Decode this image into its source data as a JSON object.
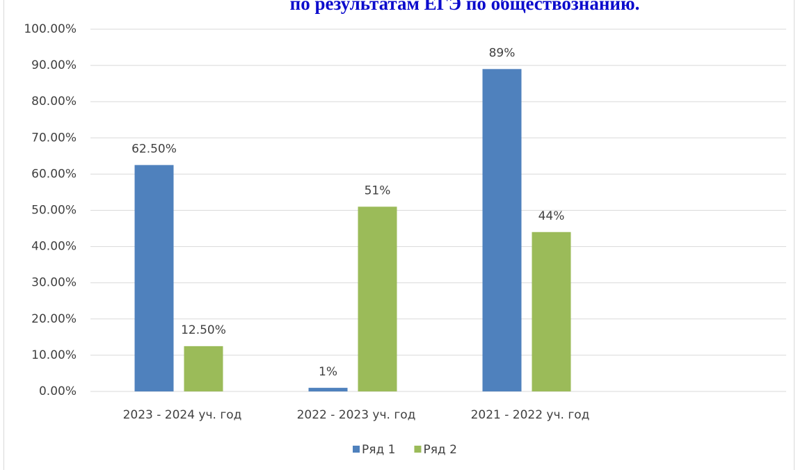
{
  "chart_data": {
    "type": "bar",
    "title": "по результатам ЕГЭ по обществознанию.",
    "categories": [
      "2023 - 2024 уч. год",
      "2022 - 2023 уч. год",
      "2021 - 2022 уч. год",
      null
    ],
    "series": [
      {
        "name": "Ряд 1",
        "color": "#4f81bd",
        "values": [
          62.5,
          1,
          89,
          null
        ],
        "value_labels": [
          "62.50%",
          "1%",
          "89%",
          null
        ]
      },
      {
        "name": "Ряд 2",
        "color": "#9bbb59",
        "values": [
          12.5,
          51,
          44,
          null
        ],
        "value_labels": [
          "12.50%",
          "51%",
          "44%",
          null
        ]
      }
    ],
    "ylim": [
      0,
      100
    ],
    "yticks": [
      {
        "value": 0,
        "label": "0.00%"
      },
      {
        "value": 10,
        "label": "10.00%"
      },
      {
        "value": 20,
        "label": "20.00%"
      },
      {
        "value": 30,
        "label": "30.00%"
      },
      {
        "value": 40,
        "label": "40.00%"
      },
      {
        "value": 50,
        "label": "50.00%"
      },
      {
        "value": 60,
        "label": "60.00%"
      },
      {
        "value": 70,
        "label": "70.00%"
      },
      {
        "value": 80,
        "label": "80.00%"
      },
      {
        "value": 90,
        "label": "90.00%"
      },
      {
        "value": 100,
        "label": "100.00%"
      }
    ],
    "grid": true,
    "legend": "bottom"
  }
}
